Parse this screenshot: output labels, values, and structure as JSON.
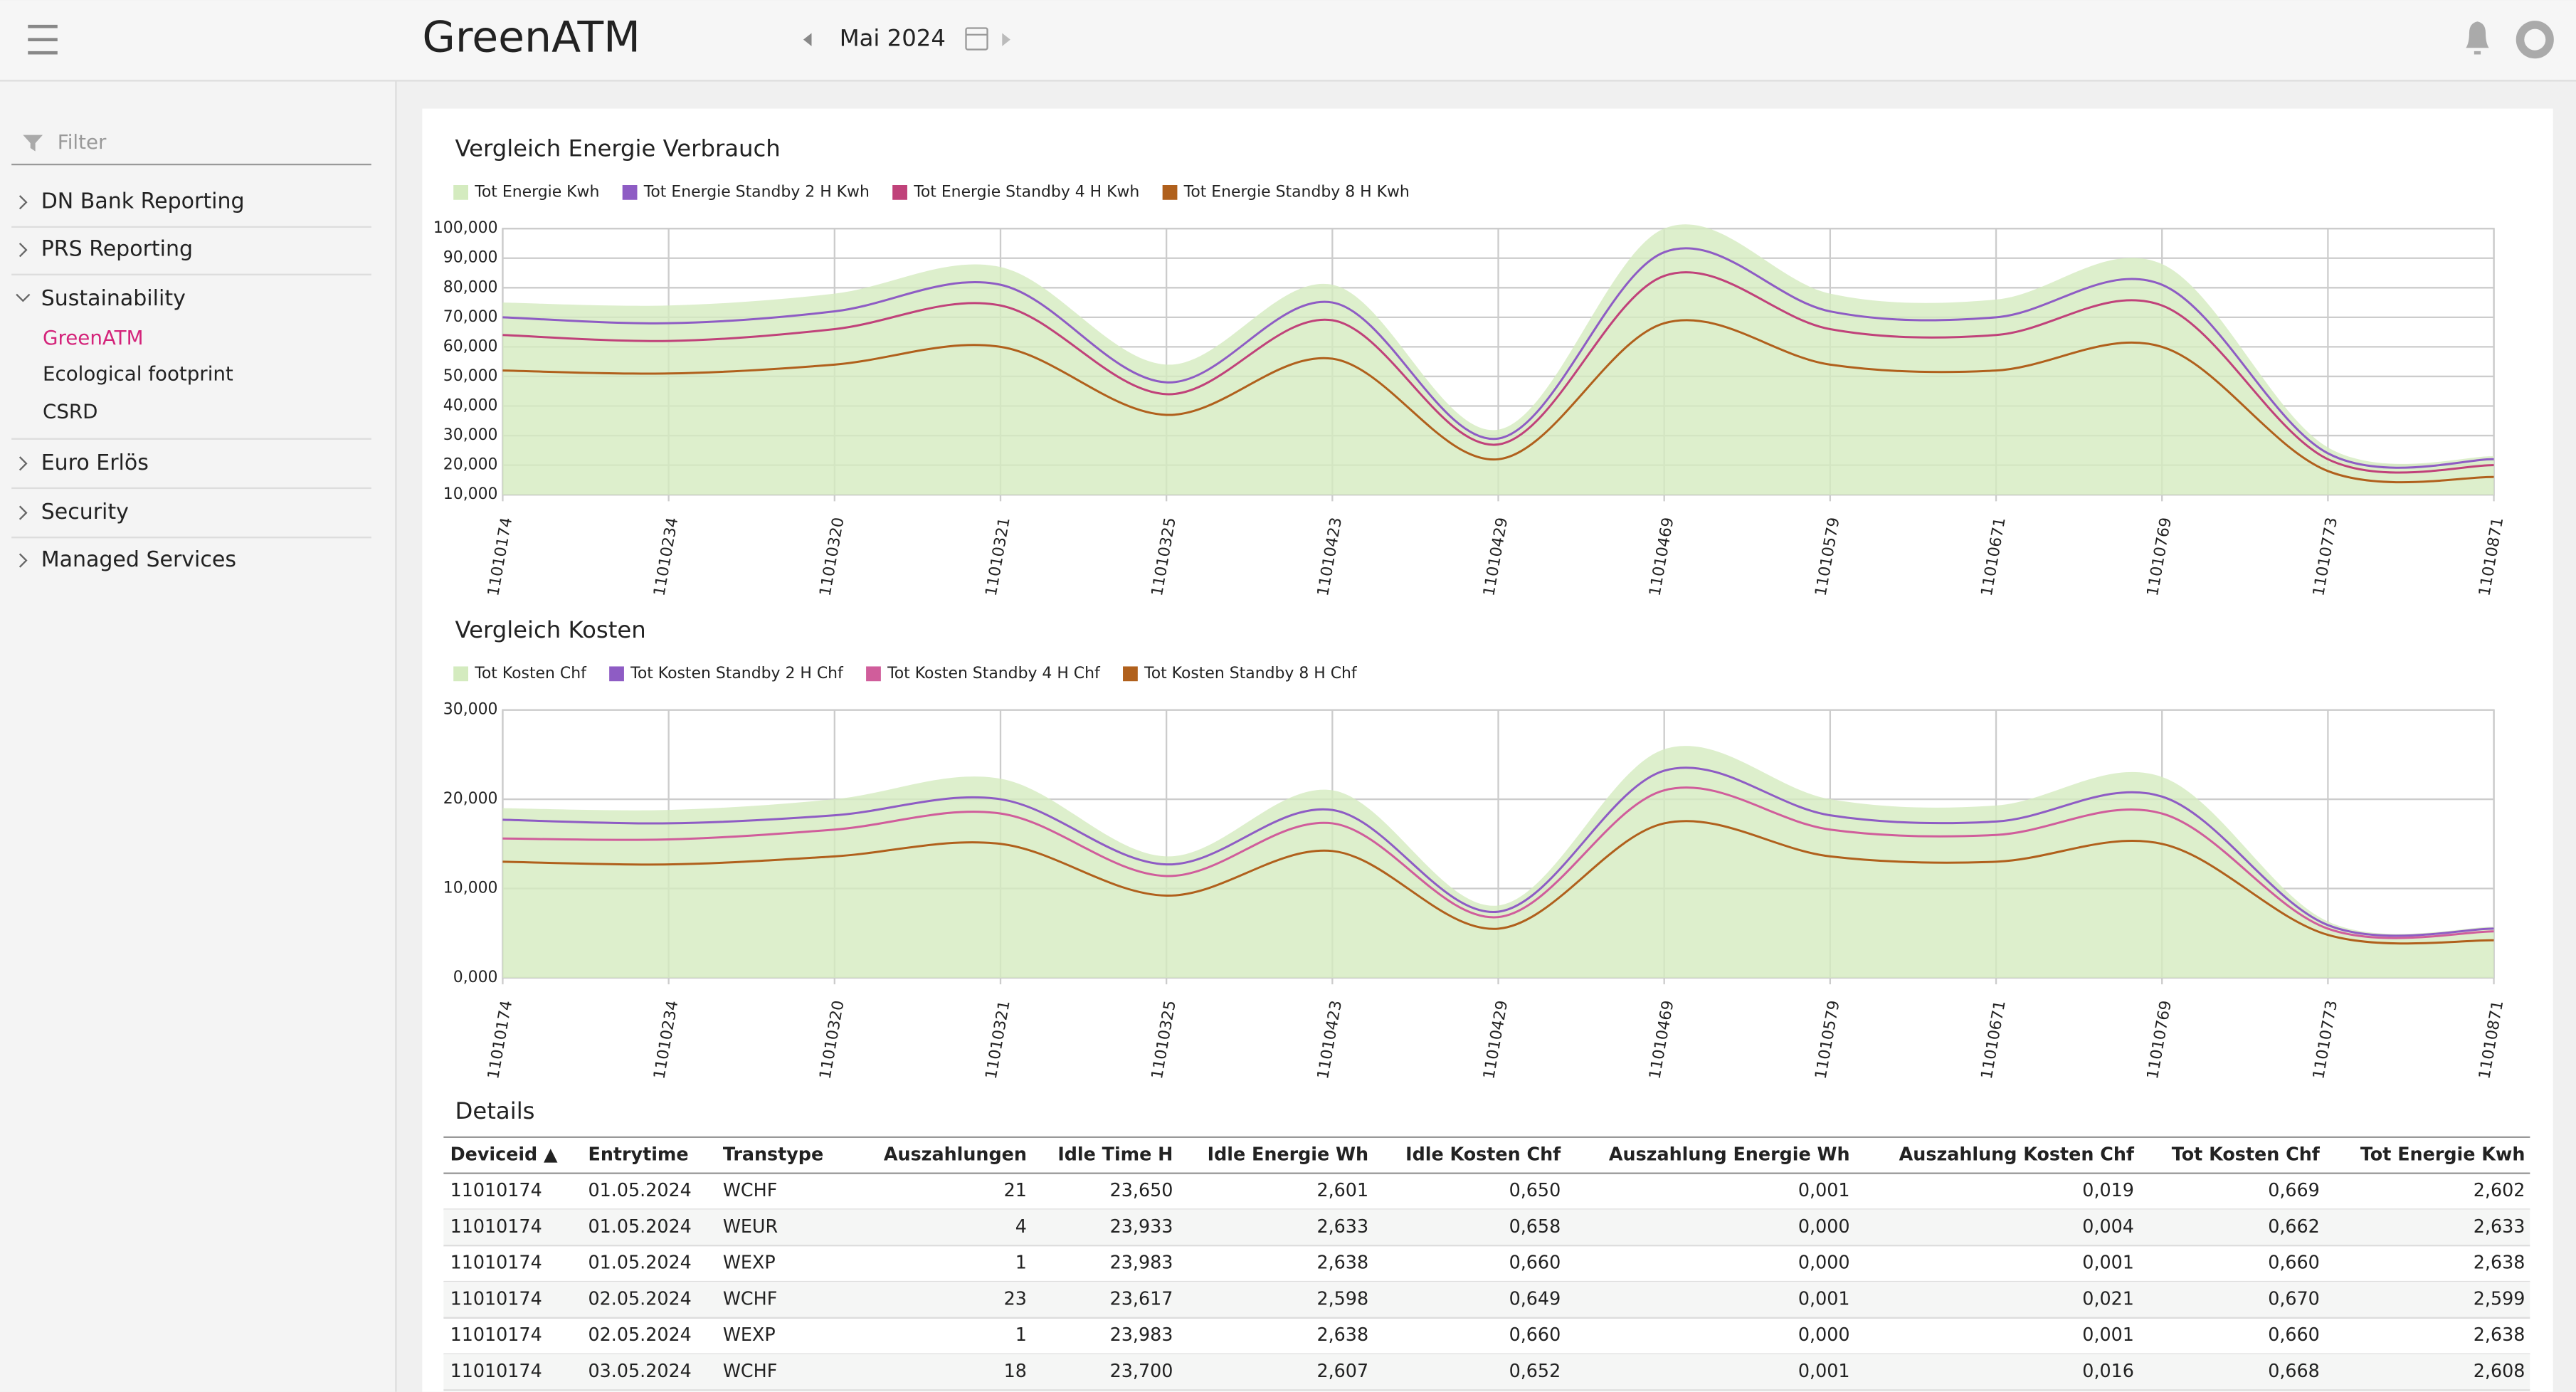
{
  "header": {
    "title": "GreenATM",
    "period": "Mai 2024"
  },
  "sidebar": {
    "filter": "Filter",
    "menu": [
      {
        "label": "DN Bank Reporting"
      },
      {
        "label": "PRS Reporting"
      },
      {
        "label": "Sustainability",
        "children": [
          "GreenATM",
          "Ecological footprint",
          "CSRD"
        ]
      },
      {
        "label": "Euro Erlös"
      },
      {
        "label": "Security"
      },
      {
        "label": "Managed Services"
      }
    ]
  },
  "charts": [
    {
      "type": "line",
      "title": "Vergleich Energie Verbrauch",
      "categories": [
        "11010174",
        "11010234",
        "11010320",
        "11010321",
        "11010325",
        "11010423",
        "11010429",
        "11010469",
        "11010579",
        "11010671",
        "11010769",
        "11010773",
        "11010871"
      ],
      "series": [
        {
          "name": "Tot Energie Kwh",
          "color": "#d4ebbf",
          "area": true,
          "values": [
            75,
            74,
            78,
            87,
            54,
            81,
            32,
            100,
            78,
            76,
            88,
            26,
            23
          ]
        },
        {
          "name": "Tot Energie Standby 2 H Kwh",
          "color": "#8e5cc4",
          "values": [
            70,
            68,
            72,
            81,
            48,
            75,
            29,
            92,
            72,
            70,
            81,
            24,
            22
          ]
        },
        {
          "name": "Tot Energie Standby 4 H Kwh",
          "color": "#c0427a",
          "values": [
            64,
            62,
            66,
            74,
            44,
            69,
            27,
            84,
            66,
            64,
            74,
            22,
            20
          ]
        },
        {
          "name": "Tot Energie Standby 8 H Kwh",
          "color": "#b0601c",
          "values": [
            52,
            51,
            54,
            60,
            37,
            56,
            22,
            68,
            54,
            52,
            60,
            18,
            16
          ]
        }
      ],
      "ylim": [
        10,
        100
      ],
      "yticks": [
        {
          "value": 10,
          "label": "10,000"
        },
        {
          "value": 20,
          "label": "20,000"
        },
        {
          "value": 30,
          "label": "30,000"
        },
        {
          "value": 40,
          "label": "40,000"
        },
        {
          "value": 50,
          "label": "50,000"
        },
        {
          "value": 60,
          "label": "60,000"
        },
        {
          "value": 70,
          "label": "70,000"
        },
        {
          "value": 80,
          "label": "80,000"
        },
        {
          "value": 90,
          "label": "90,000"
        },
        {
          "value": 100,
          "label": "100,000"
        }
      ],
      "grid": true
    },
    {
      "type": "line",
      "title": "Vergleich Kosten",
      "categories": [
        "11010174",
        "11010234",
        "11010320",
        "11010321",
        "11010325",
        "11010423",
        "11010429",
        "11010469",
        "11010579",
        "11010671",
        "11010769",
        "11010773",
        "11010871"
      ],
      "series": [
        {
          "name": "Tot Kosten Chf",
          "color": "#d4ebbf",
          "area": true,
          "values": [
            19,
            18.8,
            20,
            22.3,
            13.6,
            21,
            8.1,
            25.6,
            20,
            19.3,
            22.5,
            6.3,
            5.7
          ]
        },
        {
          "name": "Tot Kosten Standby 2 H Chf",
          "color": "#8e5cc4",
          "values": [
            17.7,
            17.3,
            18.2,
            20,
            12.7,
            18.8,
            7.4,
            23.2,
            18.2,
            17.5,
            20.3,
            5.9,
            5.5
          ]
        },
        {
          "name": "Tot Kosten Standby 4 H Chf",
          "color": "#d05d9b",
          "values": [
            15.6,
            15.5,
            16.6,
            18.4,
            11.4,
            17.3,
            6.8,
            21,
            16.6,
            16,
            18.4,
            5.5,
            5.2
          ]
        },
        {
          "name": "Tot Kosten Standby 8 H Chf",
          "color": "#b0601c",
          "values": [
            13,
            12.7,
            13.6,
            15,
            9.2,
            14.2,
            5.5,
            17.3,
            13.6,
            13,
            15,
            4.8,
            4.2
          ]
        }
      ],
      "ylim": [
        0,
        30
      ],
      "yticks": [
        {
          "value": 0,
          "label": "0,000"
        },
        {
          "value": 10,
          "label": "10,000"
        },
        {
          "value": 20,
          "label": "20,000"
        },
        {
          "value": 30,
          "label": "30,000"
        }
      ],
      "grid": true
    }
  ],
  "table": {
    "title": "Details",
    "columns": [
      "Deviceid ▲",
      "Entrytime",
      "Transtype",
      "Auszahlungen",
      "Idle Time H",
      "Idle Energie Wh",
      "Idle Kosten Chf",
      "Auszahlung Energie Wh",
      "Auszahlung Kosten Chf",
      "Tot Kosten Chf",
      "Tot Energie Kwh"
    ],
    "rows": [
      [
        "11010174",
        "01.05.2024",
        "WCHF",
        "21",
        "23,650",
        "2,601",
        "0,650",
        "0,001",
        "0,019",
        "0,669",
        "2,602"
      ],
      [
        "11010174",
        "01.05.2024",
        "WEUR",
        "4",
        "23,933",
        "2,633",
        "0,658",
        "0,000",
        "0,004",
        "0,662",
        "2,633"
      ],
      [
        "11010174",
        "01.05.2024",
        "WEXP",
        "1",
        "23,983",
        "2,638",
        "0,660",
        "0,000",
        "0,001",
        "0,660",
        "2,638"
      ],
      [
        "11010174",
        "02.05.2024",
        "WCHF",
        "23",
        "23,617",
        "2,598",
        "0,649",
        "0,001",
        "0,021",
        "0,670",
        "2,599"
      ],
      [
        "11010174",
        "02.05.2024",
        "WEXP",
        "1",
        "23,983",
        "2,638",
        "0,660",
        "0,000",
        "0,001",
        "0,660",
        "2,638"
      ],
      [
        "11010174",
        "03.05.2024",
        "WCHF",
        "18",
        "23,700",
        "2,607",
        "0,652",
        "0,001",
        "0,016",
        "0,668",
        "2,608"
      ]
    ]
  }
}
